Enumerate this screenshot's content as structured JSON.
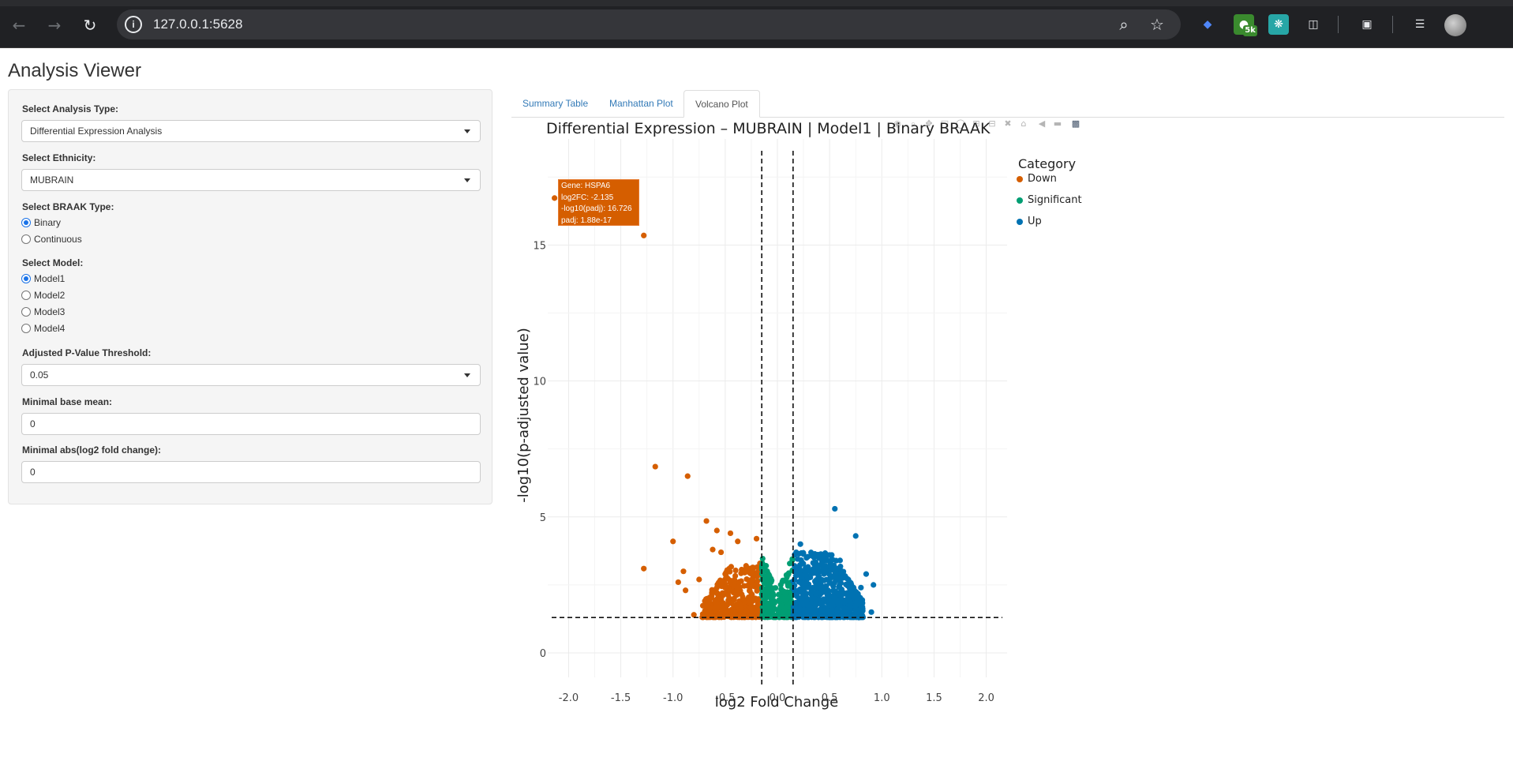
{
  "browser": {
    "url": "127.0.0.1:5628",
    "extension_badge": "5k"
  },
  "app": {
    "title": "Analysis Viewer"
  },
  "sidebar": {
    "analysis_type": {
      "label": "Select Analysis Type:",
      "value": "Differential Expression Analysis"
    },
    "ethnicity": {
      "label": "Select Ethnicity:",
      "value": "MUBRAIN"
    },
    "braak_type": {
      "label": "Select BRAAK Type:",
      "options": [
        "Binary",
        "Continuous"
      ],
      "selected": "Binary"
    },
    "model": {
      "label": "Select Model:",
      "options": [
        "Model1",
        "Model2",
        "Model3",
        "Model4"
      ],
      "selected": "Model1"
    },
    "pvalue_threshold": {
      "label": "Adjusted P-Value Threshold:",
      "value": "0.05"
    },
    "min_base_mean": {
      "label": "Minimal base mean:",
      "value": "0"
    },
    "min_abs_lfc": {
      "label": "Minimal abs(log2 fold change):",
      "value": "0"
    }
  },
  "tabs": [
    {
      "label": "Summary Table",
      "active": false
    },
    {
      "label": "Manhattan Plot",
      "active": false
    },
    {
      "label": "Volcano Plot",
      "active": true
    }
  ],
  "tooltip": {
    "gene": "Gene: HSPA6",
    "log2fc": "log2FC: -2.135",
    "neglog10padj": "-log10(padj): 16.726",
    "padj": "padj: 1.88e-17"
  },
  "chart_data": {
    "type": "scatter",
    "title": "Differential Expression – MUBRAIN | Model1 | Binary BRAAK",
    "xlabel": "log2 Fold Change",
    "ylabel": "-log10(p-adjusted value)",
    "xlim": [
      -2.2,
      2.2
    ],
    "ylim": [
      -0.9,
      18.9
    ],
    "xticks": [
      -2.0,
      -1.5,
      -1.0,
      -0.5,
      0.0,
      0.5,
      1.0,
      1.5,
      2.0
    ],
    "xtick_labels": [
      "-2.0",
      "-1.5",
      "-1.0",
      "-0.5",
      "0.0",
      "0.5",
      "1.0",
      "1.5",
      "2.0"
    ],
    "yticks": [
      0,
      5,
      10,
      15
    ],
    "ytick_labels": [
      "0",
      "5",
      "10",
      "15"
    ],
    "thresholds": {
      "vertical": [
        -0.15,
        0.15
      ],
      "horizontal": 1.3
    },
    "legend": {
      "title": "Category",
      "position": "right",
      "entries": [
        "Down",
        "Significant",
        "Up"
      ]
    },
    "colors": {
      "Down": "#d55e00",
      "Significant": "#009e73",
      "Up": "#0072b2"
    },
    "grid": true,
    "series": [
      {
        "name": "Down",
        "points": [
          [
            -2.135,
            16.726
          ],
          [
            -1.28,
            15.35
          ],
          [
            -1.17,
            6.85
          ],
          [
            -0.86,
            6.5
          ],
          [
            -1.28,
            3.1
          ],
          [
            -1.0,
            4.1
          ],
          [
            -0.95,
            2.6
          ],
          [
            -0.9,
            3.0
          ],
          [
            -0.88,
            2.3
          ],
          [
            -0.68,
            4.85
          ],
          [
            -0.58,
            4.5
          ],
          [
            -0.45,
            4.4
          ],
          [
            -0.62,
            3.8
          ],
          [
            -0.54,
            3.7
          ],
          [
            -0.38,
            4.1
          ],
          [
            -0.2,
            4.2
          ],
          [
            -0.3,
            3.2
          ],
          [
            -0.5,
            2.9
          ],
          [
            -0.75,
            2.7
          ],
          [
            -0.8,
            1.4
          ],
          [
            -0.68,
            1.7
          ],
          [
            -0.55,
            1.45
          ]
        ],
        "cluster": {
          "count": 420,
          "x_range": [
            -0.72,
            -0.15
          ],
          "y_range": [
            1.31,
            3.3
          ]
        }
      },
      {
        "name": "Significant",
        "cluster": {
          "count": 260,
          "x_range": [
            -0.15,
            0.15
          ],
          "y_range": [
            1.31,
            3.6
          ]
        }
      },
      {
        "name": "Up",
        "points": [
          [
            0.55,
            5.3
          ],
          [
            0.75,
            4.3
          ],
          [
            0.92,
            2.5
          ],
          [
            0.9,
            1.5
          ],
          [
            0.78,
            1.3
          ],
          [
            0.85,
            2.9
          ],
          [
            0.8,
            2.4
          ],
          [
            0.7,
            1.8
          ],
          [
            0.6,
            3.4
          ],
          [
            0.5,
            3.6
          ],
          [
            0.22,
            4.0
          ],
          [
            0.18,
            3.7
          ]
        ],
        "cluster": {
          "count": 700,
          "x_range": [
            0.15,
            0.82
          ],
          "y_range": [
            1.31,
            3.7
          ]
        }
      }
    ]
  }
}
